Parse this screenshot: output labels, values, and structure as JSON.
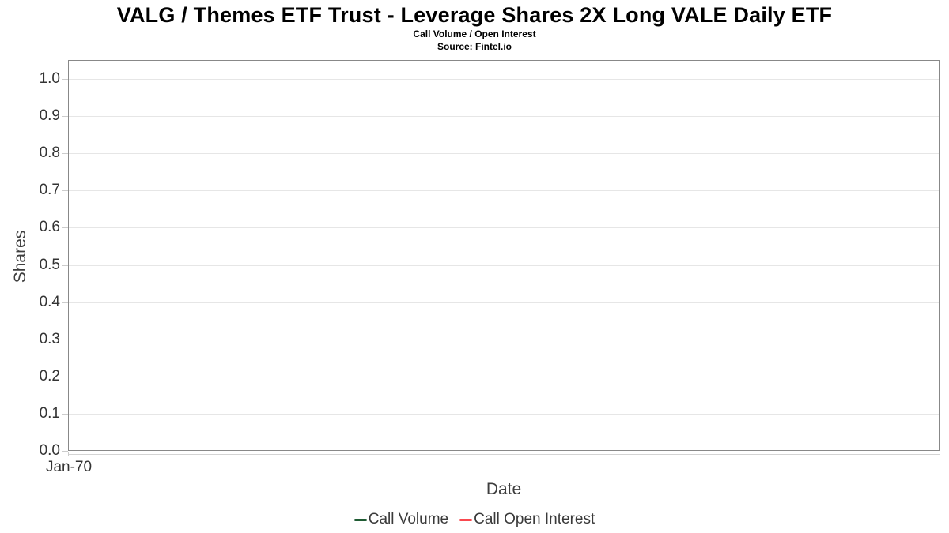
{
  "header": {
    "title": "VALG / Themes ETF Trust - Leverage Shares 2X Long VALE Daily ETF",
    "subtitle": "Call Volume / Open Interest",
    "source": "Source: Fintel.io"
  },
  "chart_data": {
    "type": "line",
    "title": "VALG / Themes ETF Trust - Leverage Shares 2X Long VALE Daily ETF",
    "subtitle": "Call Volume / Open Interest",
    "source": "Source: Fintel.io",
    "xlabel": "Date",
    "ylabel": "Shares",
    "ylim": [
      0.0,
      1.0
    ],
    "y_tick_step": 0.1,
    "y_tick_labels": [
      "0.0",
      "0.1",
      "0.2",
      "0.3",
      "0.4",
      "0.5",
      "0.6",
      "0.7",
      "0.8",
      "0.9",
      "1.0"
    ],
    "x_tick_labels": [
      "Jan-70"
    ],
    "grid": "horizontal gridlines on, vertical off",
    "legend_position": "bottom-center",
    "plot_background": "#ffffff",
    "border_color": "#888888",
    "gridline_color": "#e6e6e6",
    "series": [
      {
        "name": "Call Volume",
        "color": "#1f5b33",
        "x": [],
        "values": []
      },
      {
        "name": "Call Open Interest",
        "color": "#f9494f",
        "x": [],
        "values": []
      }
    ],
    "note": "chart is empty - no data points plotted"
  }
}
